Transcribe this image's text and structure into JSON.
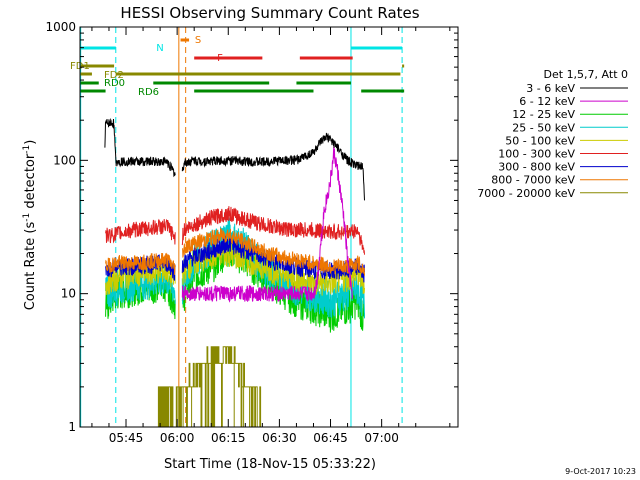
{
  "chart_data": {
    "type": "line",
    "title": "HESSI Observing Summary Count Rates",
    "xlabel": "Start Time (18-Nov-15 05:33:22)",
    "ylabel_main": "Count Rate (s",
    "ylabel_sup1": "-1",
    "ylabel_mid": " detector",
    "ylabel_sup2": "-1",
    "ylabel_end": ")",
    "y_scale": "log",
    "ylim": [
      1,
      1000
    ],
    "xlim_minutes": [
      -13.5,
      97.4
    ],
    "x_ticks": [
      {
        "t": 0,
        "label": "05:45"
      },
      {
        "t": 15,
        "label": "06:00"
      },
      {
        "t": 30,
        "label": "06:15"
      },
      {
        "t": 45,
        "label": "06:30"
      },
      {
        "t": 60,
        "label": "06:45"
      },
      {
        "t": 75,
        "label": "07:00"
      }
    ],
    "y_ticks": [
      {
        "v": 1,
        "label": "1"
      },
      {
        "v": 10,
        "label": "10"
      },
      {
        "v": 100,
        "label": "100"
      },
      {
        "v": 1000,
        "label": "1000"
      }
    ],
    "legend": {
      "title": "Det 1,5,7, Att 0",
      "placement": "right"
    },
    "series": [
      {
        "name": "3 - 6 keV",
        "color": "#000000",
        "x": [
          -6.2,
          -6,
          -3.5,
          -3.2,
          -3,
          2,
          12,
          15,
          15.5,
          17,
          18,
          20,
          22,
          30,
          35,
          40,
          45,
          50,
          55,
          57,
          59,
          61,
          63,
          65,
          67,
          68,
          69.5,
          70
        ],
        "y": [
          120,
          190,
          190,
          120,
          98,
          98,
          98,
          75,
          60,
          95,
          97,
          100,
          98,
          100,
          98,
          97,
          100,
          100,
          115,
          135,
          150,
          135,
          115,
          100,
          93,
          90,
          90,
          45
        ]
      },
      {
        "name": "6 - 12 keV",
        "color": "#cc00cc",
        "x": [
          55,
          56,
          58,
          60,
          61,
          62,
          63,
          64,
          65,
          66,
          66.5
        ],
        "y": [
          10,
          12,
          40,
          70,
          115,
          85,
          55,
          35,
          18,
          11,
          10
        ]
      },
      {
        "name": "12 - 25 keV",
        "color": "#00cc00",
        "x": [
          -6,
          -3,
          2,
          12,
          15,
          16,
          17,
          20,
          25,
          30,
          35,
          40,
          45,
          50,
          55,
          60,
          65,
          68,
          70
        ],
        "y": [
          8,
          10,
          11,
          12,
          8,
          6,
          10,
          14,
          16,
          22,
          18,
          14,
          11,
          9,
          8,
          7,
          8,
          9,
          6
        ]
      },
      {
        "name": "25 - 50 keV",
        "color": "#00cccc",
        "x": [
          -6,
          -3,
          2,
          12,
          15,
          16,
          17,
          20,
          25,
          30,
          35,
          40,
          45,
          50,
          55,
          60,
          65,
          68,
          70
        ],
        "y": [
          10,
          11,
          12,
          13,
          10,
          8,
          13,
          18,
          22,
          28,
          22,
          16,
          13,
          11,
          10,
          9,
          10,
          11,
          8
        ]
      },
      {
        "name": "50 - 100 keV",
        "color": "#cccc00",
        "x": [
          -6,
          -3,
          2,
          12,
          15,
          17,
          20,
          25,
          30,
          35,
          40,
          45,
          50,
          55,
          60,
          65,
          68,
          70
        ],
        "y": [
          12,
          13,
          14,
          15,
          12,
          15,
          17,
          19,
          20,
          18,
          16,
          14,
          13,
          12,
          12,
          13,
          14,
          12
        ]
      },
      {
        "name": "100 - 300 keV",
        "color": "#e02020",
        "x": [
          -6,
          -3,
          2,
          12,
          15,
          15.5,
          17,
          20,
          25,
          30,
          35,
          40,
          45,
          50,
          55,
          60,
          65,
          68,
          70
        ],
        "y": [
          27,
          28,
          30,
          32,
          25,
          20,
          30,
          33,
          37,
          40,
          36,
          33,
          31,
          30,
          30,
          29,
          29,
          30,
          20
        ]
      },
      {
        "name": "300 - 800 keV",
        "color": "#0000cc",
        "x": [
          -6,
          -3,
          2,
          12,
          15,
          17,
          20,
          25,
          30,
          35,
          40,
          45,
          50,
          55,
          60,
          65,
          68,
          70
        ],
        "y": [
          15,
          16,
          16,
          17,
          14,
          17,
          19,
          21,
          24,
          21,
          19,
          17,
          16,
          15,
          15,
          15,
          16,
          14
        ]
      },
      {
        "name": "800 - 7000 keV",
        "color": "#ee7700",
        "x": [
          -6,
          -3,
          2,
          12,
          15,
          17,
          20,
          25,
          30,
          35,
          40,
          45,
          50,
          55,
          60,
          65,
          68,
          70
        ],
        "y": [
          16,
          17,
          17,
          18,
          15,
          22,
          24,
          26,
          28,
          24,
          21,
          19,
          18,
          17,
          16,
          16,
          17,
          15
        ]
      },
      {
        "name": "7000 - 20000 keV",
        "color": "#888800",
        "x": [
          9,
          12,
          15,
          17,
          19,
          22,
          25,
          28,
          31,
          34,
          37,
          40
        ],
        "y": [
          1.5,
          1.8,
          1.5,
          1.8,
          2.2,
          2.8,
          3.5,
          3.8,
          3.2,
          2.5,
          1.8,
          1.3
        ]
      }
    ],
    "annotations": {
      "mode_labels": [
        {
          "label": "N",
          "color": "#00e5e5"
        },
        {
          "label": "S",
          "color": "#ee7700"
        },
        {
          "label": "F",
          "color": "#e02020"
        },
        {
          "label": "FD1",
          "color": "#888800"
        },
        {
          "label": "FD2",
          "color": "#888800"
        },
        {
          "label": "RD0",
          "color": "#008800"
        },
        {
          "label": "RD6",
          "color": "#008800"
        }
      ],
      "vertical_lines": [
        {
          "t": -13.3,
          "color": "#00e5e5",
          "style": "solid"
        },
        {
          "t": -3.0,
          "color": "#00e5e5",
          "style": "dashed"
        },
        {
          "t": 66.0,
          "color": "#00e5e5",
          "style": "solid"
        },
        {
          "t": 81.0,
          "color": "#00e5e5",
          "style": "dashed"
        },
        {
          "t": 15.5,
          "color": "#ee7700",
          "style": "solid"
        },
        {
          "t": 17.5,
          "color": "#ee7700",
          "style": "dashed"
        }
      ]
    }
  },
  "footer": {
    "timestamp": "9-Oct-2017 10:23"
  }
}
